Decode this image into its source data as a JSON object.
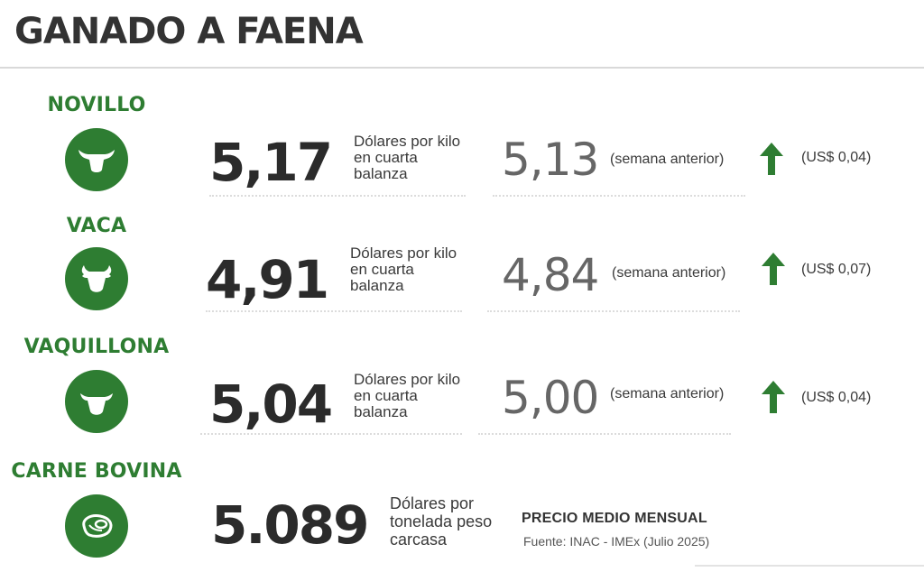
{
  "title": "GANADO A FAENA",
  "rows": [
    {
      "label": "NOVILLO",
      "icon": "steer-head-icon",
      "value": "5,17",
      "unit": "Dólares por kilo en cuarta balanza",
      "prev": "5,13",
      "prev_label": "(semana anterior)",
      "trend": "up",
      "delta": "(US$ 0,04)"
    },
    {
      "label": "VACA",
      "icon": "cow-head-icon",
      "value": "4,91",
      "unit": "Dólares por kilo en cuarta balanza",
      "prev": "4,84",
      "prev_label": "(semana anterior)",
      "trend": "up",
      "delta": "(US$ 0,07)"
    },
    {
      "label": "VAQUILLONA",
      "icon": "heifer-head-icon",
      "value": "5,04",
      "unit": "Dólares por kilo en cuarta balanza",
      "prev": "5,00",
      "prev_label": "(semana anterior)",
      "trend": "up",
      "delta": "(US$ 0,04)"
    }
  ],
  "beef": {
    "label": "CARNE BOVINA",
    "icon": "meat-cut-icon",
    "value": "5.089",
    "unit": "Dólares por tonelada peso carcasa",
    "note_title": "PRECIO MEDIO MENSUAL",
    "note_source": "Fuente: INAC - IMEx (Julio 2025)"
  },
  "colors": {
    "accent": "#2e7d32",
    "text": "#2b2b2b",
    "muted": "#666666"
  }
}
